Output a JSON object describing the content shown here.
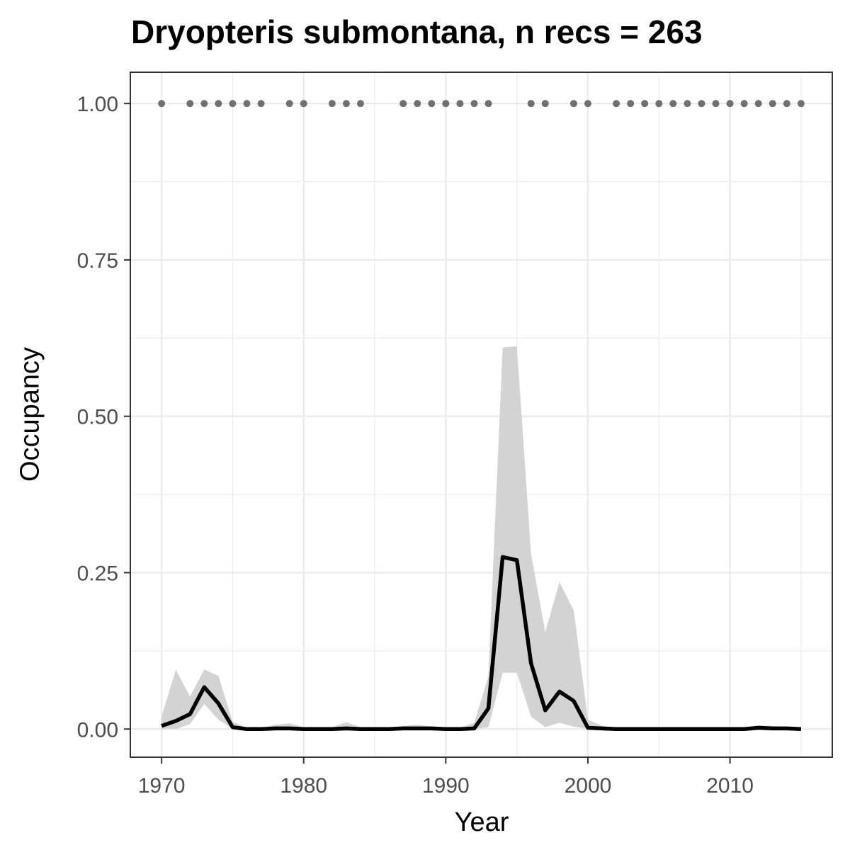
{
  "chart_data": {
    "type": "line",
    "title": "Dryopteris submontana, n recs = 263",
    "xlabel": "Year",
    "ylabel": "Occupancy",
    "xlim": [
      1967.8,
      2017.2
    ],
    "ylim": [
      -0.045,
      1.05
    ],
    "x_ticks": [
      1970,
      1980,
      1990,
      2000,
      2010
    ],
    "x_tick_labels": [
      "1970",
      "1980",
      "1990",
      "2000",
      "2010"
    ],
    "y_ticks": [
      0,
      0.25,
      0.5,
      0.75,
      1
    ],
    "y_tick_labels": [
      "0.00",
      "0.25",
      "0.50",
      "0.75",
      "1.00"
    ],
    "grid": true,
    "colors": {
      "line": "#000000",
      "ribbon": "#d3d3d3",
      "points": "#707070",
      "grid": "#ebebeb",
      "frame": "#333333"
    },
    "series": [
      {
        "type": "line",
        "x": [
          1970,
          1971,
          1972,
          1973,
          1974,
          1975,
          1976,
          1977,
          1978,
          1979,
          1980,
          1981,
          1982,
          1983,
          1984,
          1985,
          1986,
          1987,
          1988,
          1989,
          1990,
          1991,
          1992,
          1993,
          1994,
          1995,
          1996,
          1997,
          1998,
          1999,
          2000,
          2001,
          2002,
          2003,
          2004,
          2005,
          2006,
          2007,
          2008,
          2009,
          2010,
          2011,
          2012,
          2013,
          2014,
          2015
        ],
        "y": [
          0.005,
          0.013,
          0.024,
          0.067,
          0.041,
          0.003,
          0.0,
          0.0,
          0.001,
          0.001,
          0.0,
          0.0,
          0.0,
          0.001,
          0.0,
          0.0,
          0.0,
          0.001,
          0.001,
          0.001,
          0.0,
          0.0,
          0.001,
          0.033,
          0.275,
          0.27,
          0.105,
          0.03,
          0.06,
          0.045,
          0.002,
          0.001,
          0.0,
          0.0,
          0.0,
          0.0,
          0.0,
          0.0,
          0.0,
          0.0,
          0.0,
          0.0,
          0.002,
          0.001,
          0.001,
          0.0
        ]
      },
      {
        "type": "ribbon",
        "x": [
          1970,
          1971,
          1972,
          1973,
          1974,
          1975,
          1976,
          1977,
          1978,
          1979,
          1980,
          1981,
          1982,
          1983,
          1984,
          1985,
          1986,
          1987,
          1988,
          1989,
          1990,
          1991,
          1992,
          1993,
          1994,
          1995,
          1996,
          1997,
          1998,
          1999,
          2000,
          2001,
          2002,
          2003,
          2004,
          2005,
          2006,
          2007,
          2008,
          2009,
          2010,
          2011,
          2012,
          2013,
          2014,
          2015
        ],
        "lower": [
          0.0,
          0.0,
          0.008,
          0.04,
          0.015,
          0.0,
          0.0,
          0.0,
          0.0,
          0.0,
          0.0,
          0.0,
          0.0,
          0.0,
          0.0,
          0.0,
          0.0,
          0.0,
          0.0,
          0.0,
          0.0,
          0.0,
          0.0,
          0.003,
          0.09,
          0.09,
          0.02,
          0.003,
          0.01,
          0.004,
          0.0,
          0.0,
          0.0,
          0.0,
          0.0,
          0.0,
          0.0,
          0.0,
          0.0,
          0.0,
          0.0,
          0.0,
          0.0,
          0.0,
          0.0,
          0.0
        ],
        "upper": [
          0.02,
          0.095,
          0.052,
          0.095,
          0.085,
          0.012,
          0.002,
          0.002,
          0.007,
          0.009,
          0.003,
          0.001,
          0.003,
          0.011,
          0.003,
          0.002,
          0.002,
          0.005,
          0.007,
          0.004,
          0.002,
          0.002,
          0.01,
          0.085,
          0.61,
          0.612,
          0.28,
          0.155,
          0.235,
          0.19,
          0.015,
          0.005,
          0.002,
          0.002,
          0.001,
          0.001,
          0.001,
          0.001,
          0.001,
          0.001,
          0.001,
          0.002,
          0.006,
          0.005,
          0.004,
          0.003
        ]
      },
      {
        "type": "points",
        "x": [
          1970,
          1972,
          1973,
          1974,
          1975,
          1976,
          1977,
          1979,
          1980,
          1982,
          1983,
          1984,
          1987,
          1988,
          1989,
          1990,
          1991,
          1992,
          1993,
          1996,
          1997,
          1999,
          2000,
          2002,
          2003,
          2004,
          2005,
          2006,
          2007,
          2008,
          2009,
          2010,
          2011,
          2012,
          2013,
          2014,
          2015
        ],
        "y": [
          1,
          1,
          1,
          1,
          1,
          1,
          1,
          1,
          1,
          1,
          1,
          1,
          1,
          1,
          1,
          1,
          1,
          1,
          1,
          1,
          1,
          1,
          1,
          1,
          1,
          1,
          1,
          1,
          1,
          1,
          1,
          1,
          1,
          1,
          1,
          1,
          1
        ]
      }
    ]
  }
}
